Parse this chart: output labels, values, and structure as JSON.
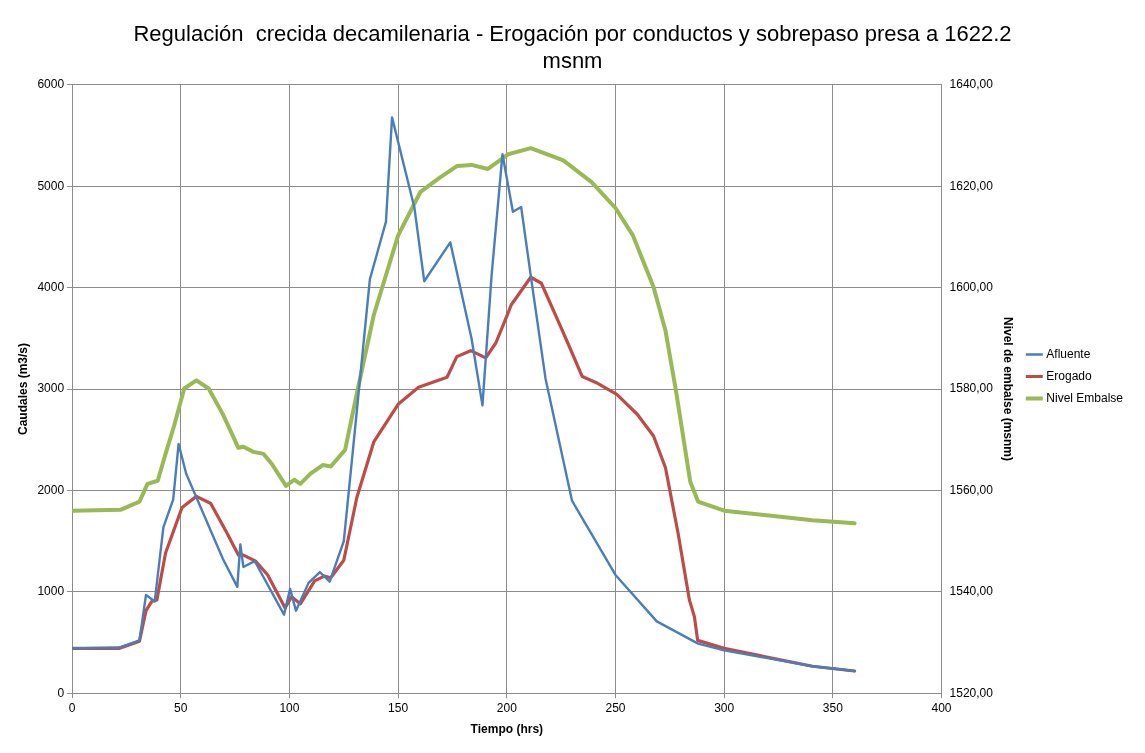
{
  "chart_data": {
    "type": "line",
    "title": "Regulación  crecida decamilenaria - Erogación por conductos y sobrepaso presa a 1622.2 msnm",
    "xlabel": "Tiempo (hrs)",
    "ylabel": "Caudales (m3/s)",
    "y2label": "Nivel de embalse (msnm)",
    "xlim": [
      0,
      400
    ],
    "xticks": [
      0,
      50,
      100,
      150,
      200,
      250,
      300,
      350,
      400
    ],
    "ylim": [
      0,
      6000
    ],
    "yticks": [
      0,
      1000,
      2000,
      3000,
      4000,
      5000,
      6000
    ],
    "y2lim": [
      1520,
      1640
    ],
    "y2ticks": [
      {
        "value": 1520,
        "label": "1520,00"
      },
      {
        "value": 1540,
        "label": "1540,00"
      },
      {
        "value": 1560,
        "label": "1560,00"
      },
      {
        "value": 1580,
        "label": "1580,00"
      },
      {
        "value": 1600,
        "label": "1600,00"
      },
      {
        "value": 1620,
        "label": "1620,00"
      },
      {
        "value": 1640,
        "label": "1640,00"
      }
    ],
    "grid": true,
    "legend": "right",
    "marker": "none",
    "line_style": "solid",
    "series": [
      {
        "name": "Afluente",
        "color": "#4a7ebb",
        "x": [
          0,
          21.6,
          31,
          34,
          38,
          42,
          46.5,
          49,
          52.5,
          69.4,
          76,
          77.4,
          78.8,
          84,
          97.5,
          100.3,
          103,
          108.8,
          114,
          118.5,
          125,
          129.4,
          137,
          144.4,
          147.2,
          157.5,
          162,
          174,
          183.8,
          188.8,
          193,
          198,
          202.8,
          206.6,
          211,
          217.8,
          230,
          250,
          269,
          288,
          300,
          340.6,
          360
        ],
        "values": [
          442,
          450,
          520,
          970,
          904,
          1636,
          1910,
          2458,
          2164,
          1323,
          1049,
          1468,
          1245,
          1303,
          775,
          1029,
          814,
          1088,
          1194,
          1100,
          1499,
          2438,
          4082,
          4650,
          5679,
          4787,
          4063,
          4446,
          3495,
          2838,
          4121,
          5315,
          4748,
          4795,
          4121,
          3104,
          1898,
          1166,
          708,
          489,
          423,
          266,
          219
        ]
      },
      {
        "name": "Erogado",
        "color": "#be4b48",
        "x": [
          0,
          21.6,
          31,
          34,
          36.6,
          39,
          43,
          50.6,
          57.2,
          63.8,
          71.3,
          76.5,
          78.8,
          84.4,
          90,
          98,
          101,
          105,
          111.6,
          116,
          119,
          125,
          131,
          138.8,
          150,
          159.4,
          172.5,
          177,
          183.4,
          190.3,
          195,
          200.6,
          202,
          211,
          215.9,
          224.4,
          228,
          234.7,
          241,
          250.6,
          260,
          267.5,
          273,
          278.8,
          284,
          286.3,
          287.8,
          300,
          340.6,
          360
        ],
        "values": [
          442,
          442,
          513,
          814,
          904,
          920,
          1382,
          1832,
          1941,
          1871,
          1577,
          1362,
          1362,
          1303,
          1166,
          841,
          951,
          881,
          1108,
          1155,
          1139,
          1311,
          1930,
          2478,
          2849,
          3018,
          3116,
          3319,
          3378,
          3307,
          3456,
          3750,
          3828,
          4102,
          4043,
          3632,
          3456,
          3123,
          3065,
          2947,
          2751,
          2536,
          2223,
          1577,
          920,
          755,
          521,
          442,
          266,
          219
        ]
      },
      {
        "name": "Nivel Embalse",
        "color": "#98b954",
        "axis": "y2",
        "x": [
          0,
          22.5,
          31,
          34.7,
          39.4,
          43,
          46.9,
          51.6,
          57.2,
          62.8,
          69.4,
          76.5,
          78.8,
          83.4,
          88.1,
          91.9,
          98.4,
          102.2,
          105,
          109.7,
          115.3,
          119,
          125.6,
          131.3,
          138.8,
          150,
          160.3,
          168.8,
          177.2,
          183.8,
          191.3,
          200.6,
          211,
          226,
          239,
          250,
          258,
          267.5,
          273,
          277.8,
          284.4,
          288,
          300,
          340.6,
          360
        ],
        "values": [
          1556.0,
          1556.2,
          1557.8,
          1561.3,
          1561.9,
          1567.2,
          1572.7,
          1580.1,
          1581.7,
          1580.1,
          1575.0,
          1568.4,
          1568.6,
          1567.6,
          1567.2,
          1565.2,
          1560.9,
          1562.1,
          1561.3,
          1563.3,
          1565.0,
          1564.7,
          1568.0,
          1579.7,
          1594.6,
          1610.3,
          1618.9,
          1621.6,
          1624.0,
          1624.2,
          1623.4,
          1626.3,
          1627.5,
          1625.1,
          1620.8,
          1615.7,
          1610.3,
          1600.1,
          1591.5,
          1579.7,
          1561.7,
          1557.8,
          1556.0,
          1554.1,
          1553.5
        ]
      }
    ]
  }
}
